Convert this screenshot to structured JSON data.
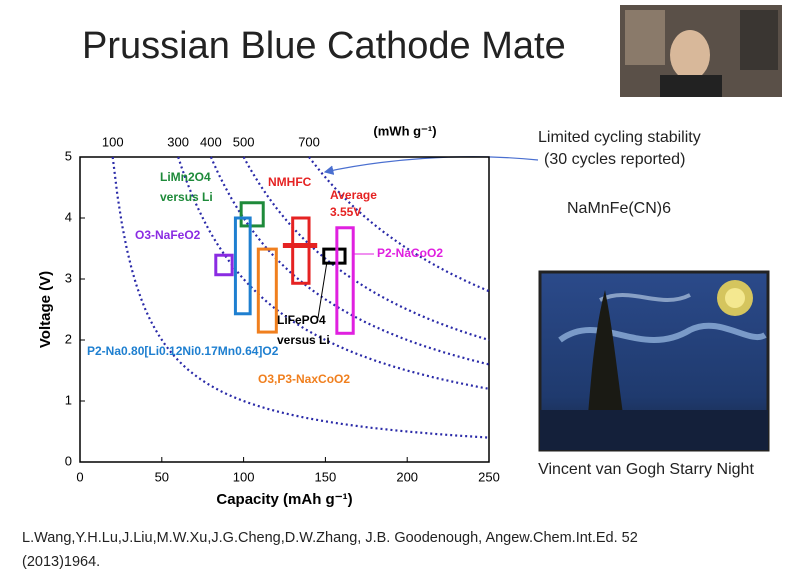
{
  "slide_title": "Prussian Blue Cathode Mate",
  "chart_data": {
    "type": "box",
    "x_label": "Capacity (mAh g⁻¹)",
    "y_label": "Voltage (V)",
    "top_label": "(mWh g⁻¹)",
    "xlim": [
      0,
      250
    ],
    "xticks": [
      0,
      50,
      100,
      150,
      200,
      250
    ],
    "ylim": [
      0,
      5
    ],
    "yticks": [
      0,
      1,
      2,
      3,
      4,
      5
    ],
    "energy_curves": {
      "color": "#2a2aa8",
      "values": [
        100,
        300,
        400,
        500,
        700
      ]
    },
    "boxes": [
      {
        "name": [
          "LiMn2O4",
          "versus Li"
        ],
        "color": "#1e8a3a",
        "x": [
          98.5,
          112
        ],
        "y": [
          3.87,
          4.25
        ]
      },
      {
        "name": [
          "O3-NaFeO2"
        ],
        "color": "#8a2be2",
        "x": [
          83,
          93
        ],
        "y": [
          3.07,
          3.39
        ]
      },
      {
        "name": [
          "P2-Na0.80[Li0.12Ni0.17Mn0.64]O2"
        ],
        "color": "#1e7fd0",
        "x": [
          95,
          104
        ],
        "y": [
          2.43,
          4.0
        ]
      },
      {
        "name": [
          "O3,P3-NaxCoO2"
        ],
        "color": "#f07f1e",
        "x": [
          109,
          120
        ],
        "y": [
          2.13,
          3.49
        ]
      },
      {
        "name": [
          "NMHFC"
        ],
        "color": "#e52222",
        "x": [
          130,
          140
        ],
        "y": [
          2.93,
          4.0
        ]
      },
      {
        "name": [
          "LiFePO4",
          "versus Li"
        ],
        "color": "#000000",
        "x": [
          149,
          162
        ],
        "y": [
          3.26,
          3.49
        ]
      },
      {
        "name": [
          "P2-NaCoO2"
        ],
        "color": "#e020e0",
        "x": [
          157,
          167
        ],
        "y": [
          2.11,
          3.84
        ]
      }
    ],
    "average": {
      "label": [
        "Average",
        "3.55V"
      ],
      "value": 3.55,
      "x": [
        124,
        145
      ],
      "color": "#e52222"
    }
  },
  "annotation": [
    "Limited cycling stability",
    "(30 cycles reported)"
  ],
  "formula": "NaMnFe(CN)6",
  "painting_caption": "Vincent van Gogh Starry Night",
  "citation": [
    "L.Wang,Y.H.Lu,J.Liu,M.W.Xu,J.G.Cheng,D.W.Zhang, J.B. Goodenough, Angew.Chem.Int.Ed. 52",
    "(2013)1964."
  ]
}
